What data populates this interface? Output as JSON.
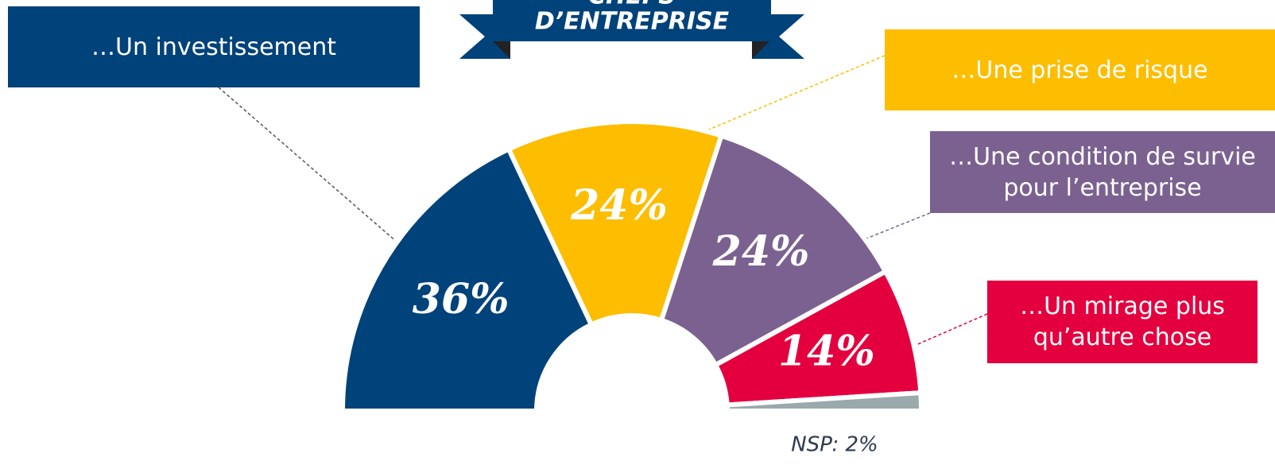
{
  "banner": [
    "CHEFS",
    "D’ENTREPRISE"
  ],
  "chart_data": {
    "type": "half-donut",
    "categories": [
      "…Un investissement",
      "…Une prise de risque",
      "…Une condition de survie pour l’entreprise",
      "…Un mirage plus qu’autre chose",
      null
    ],
    "values": [
      36,
      24,
      24,
      14,
      2
    ],
    "value_labels": [
      "36%",
      "24%",
      "24%",
      "14%",
      "NSP: 2%"
    ],
    "colors": [
      "#00427a",
      "#fdbd00",
      "#7b6190",
      "#e4003f",
      "#9aa9ab"
    ]
  }
}
